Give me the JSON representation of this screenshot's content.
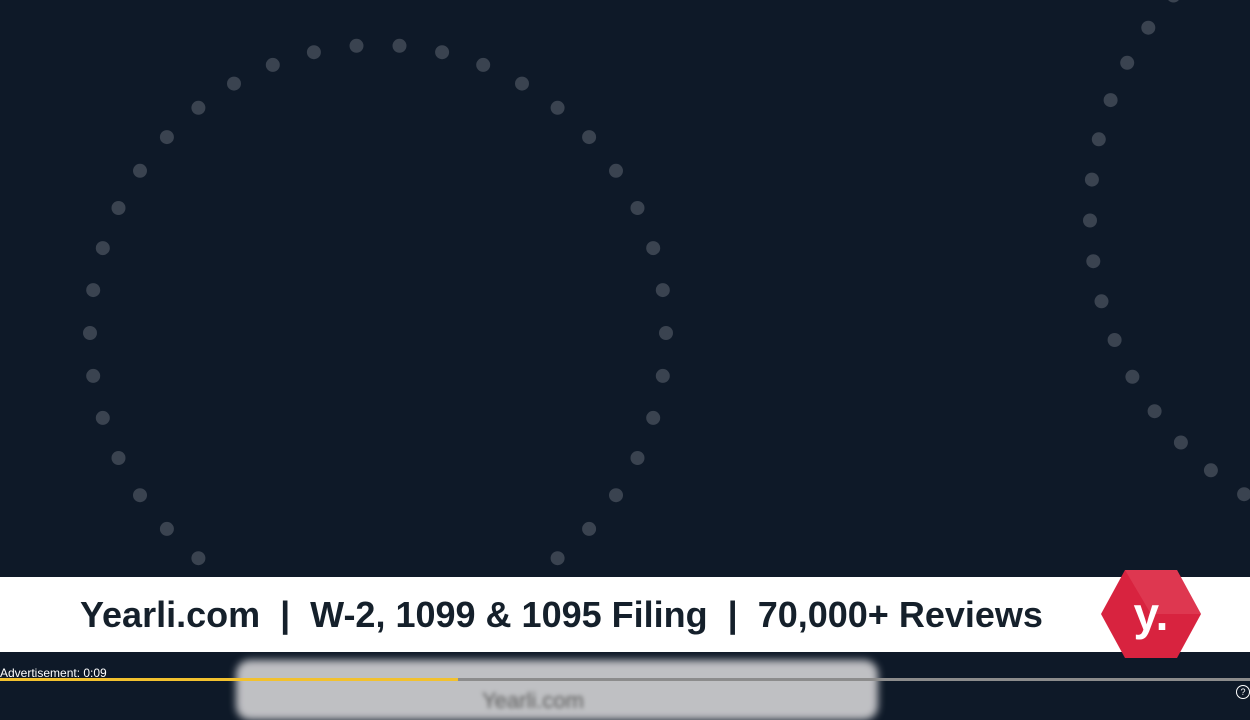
{
  "banner": {
    "text": "Yearli.com  |  W-2, 1099 & 1095 Filing  |  70,000+ Reviews",
    "logo_letter": "y.",
    "logo_color": "#d8233f"
  },
  "card": {
    "text": "Yearli.com"
  },
  "ad": {
    "label": "Advertisement: 0:09",
    "progress_fraction": 0.366,
    "progress_color": "#f2c12e"
  },
  "controls": {
    "help_icon": "?"
  }
}
